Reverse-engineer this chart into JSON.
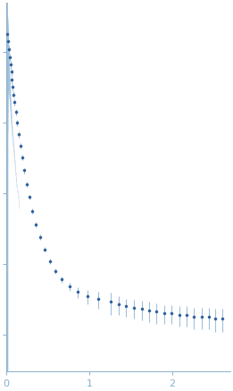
{
  "background_color": "#ffffff",
  "axes_color": "#8ab0cc",
  "data_color": "#2c5f9e",
  "error_color": "#a0c0dc",
  "xlim": [
    0,
    2.7
  ],
  "ylim": [
    0.003,
    500
  ],
  "xticks": [
    0,
    1,
    2
  ],
  "figsize": [
    2.61,
    4.37
  ],
  "dpi": 100,
  "q_values": [
    0.01,
    0.02,
    0.03,
    0.04,
    0.05,
    0.06,
    0.07,
    0.08,
    0.09,
    0.1,
    0.115,
    0.13,
    0.148,
    0.168,
    0.19,
    0.215,
    0.245,
    0.278,
    0.316,
    0.358,
    0.406,
    0.46,
    0.522,
    0.592,
    0.67,
    0.76,
    0.862,
    0.977,
    1.107,
    1.255,
    1.35,
    1.44,
    1.54,
    1.63,
    1.72,
    1.81,
    1.9,
    1.99,
    2.08,
    2.17,
    2.26,
    2.35,
    2.44,
    2.52,
    2.6
  ],
  "I_values": [
    180.0,
    140.0,
    110.0,
    85.0,
    66.0,
    52.0,
    40.0,
    32.0,
    25.0,
    19.5,
    14.0,
    10.0,
    6.8,
    4.7,
    3.2,
    2.1,
    1.35,
    0.88,
    0.56,
    0.36,
    0.24,
    0.16,
    0.11,
    0.08,
    0.06,
    0.048,
    0.04,
    0.035,
    0.032,
    0.029,
    0.027,
    0.025,
    0.024,
    0.023,
    0.022,
    0.021,
    0.02,
    0.02,
    0.019,
    0.019,
    0.018,
    0.018,
    0.018,
    0.017,
    0.017
  ],
  "err_values": [
    30.0,
    20.0,
    14.0,
    10.0,
    8.0,
    6.0,
    4.5,
    3.5,
    2.5,
    2.0,
    1.4,
    1.0,
    0.65,
    0.42,
    0.28,
    0.18,
    0.11,
    0.07,
    0.045,
    0.028,
    0.018,
    0.012,
    0.009,
    0.007,
    0.006,
    0.006,
    0.007,
    0.008,
    0.009,
    0.01,
    0.008,
    0.007,
    0.007,
    0.007,
    0.007,
    0.007,
    0.006,
    0.006,
    0.006,
    0.006,
    0.006,
    0.006,
    0.006,
    0.006,
    0.006
  ],
  "q_dense": [
    0.001,
    0.002,
    0.003,
    0.004,
    0.005,
    0.006,
    0.007,
    0.008,
    0.009,
    0.01,
    0.011,
    0.012,
    0.013,
    0.014,
    0.015,
    0.016,
    0.017,
    0.018,
    0.019,
    0.02,
    0.021,
    0.022,
    0.023,
    0.024,
    0.025,
    0.026,
    0.027,
    0.028,
    0.029,
    0.03,
    0.032,
    0.034,
    0.036,
    0.038,
    0.04,
    0.042,
    0.044,
    0.046,
    0.048,
    0.05,
    0.053,
    0.056,
    0.059,
    0.062,
    0.066,
    0.07,
    0.074,
    0.078,
    0.083,
    0.088,
    0.093,
    0.098,
    0.104,
    0.11,
    0.116,
    0.123,
    0.13,
    0.138,
    0.146,
    0.155
  ],
  "I_dense": [
    400.0,
    390.0,
    370.0,
    350.0,
    330.0,
    310.0,
    290.0,
    270.0,
    255.0,
    240.0,
    225.0,
    210.0,
    197.0,
    185.0,
    174.0,
    164.0,
    154.0,
    145.0,
    136.0,
    128.0,
    121.0,
    114.0,
    107.0,
    101.0,
    95.0,
    89.0,
    84.0,
    79.0,
    74.0,
    70.0,
    62.0,
    55.0,
    49.0,
    43.0,
    38.5,
    34.0,
    30.5,
    27.0,
    24.0,
    21.5,
    18.5,
    16.0,
    13.8,
    12.0,
    10.0,
    8.5,
    7.2,
    6.1,
    5.1,
    4.3,
    3.6,
    3.0,
    2.5,
    2.1,
    1.75,
    1.45,
    1.2,
    1.0,
    0.83,
    0.68
  ],
  "err_dense_factors": [
    2.5,
    2.3,
    2.1,
    2.0,
    1.9,
    1.8,
    1.7,
    1.6,
    1.5,
    1.4,
    1.3,
    1.25,
    1.2,
    1.15,
    1.1,
    1.05,
    1.0,
    0.95,
    0.9,
    0.85,
    0.8,
    0.78,
    0.75,
    0.72,
    0.7,
    0.68,
    0.65,
    0.63,
    0.61,
    0.6,
    0.58,
    0.55,
    0.52,
    0.5,
    0.48,
    0.46,
    0.44,
    0.42,
    0.4,
    0.38,
    0.36,
    0.34,
    0.32,
    0.3,
    0.28,
    0.26,
    0.25,
    0.23,
    0.22,
    0.21,
    0.2,
    0.19,
    0.18,
    0.17,
    0.16,
    0.15,
    0.14,
    0.13,
    0.12,
    0.11
  ]
}
